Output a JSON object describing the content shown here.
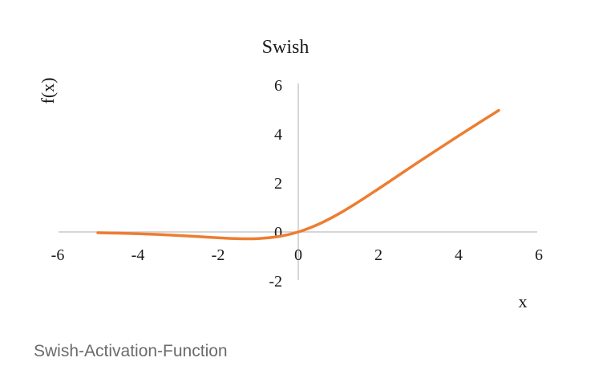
{
  "chart_data": {
    "type": "line",
    "title": "Swish",
    "xlabel": "x",
    "ylabel": "f(x)",
    "xlim": [
      -6,
      6
    ],
    "ylim": [
      -2,
      6
    ],
    "x_ticks": [
      "-6",
      "-4",
      "-2",
      "0",
      "2",
      "4",
      "6"
    ],
    "y_ticks": [
      "-2",
      "0",
      "2",
      "4",
      "6"
    ],
    "grid": false,
    "legend": "none",
    "series": [
      {
        "color": "#ed7d31",
        "x": [
          -5,
          -4.5,
          -4,
          -3.5,
          -3,
          -2.5,
          -2,
          -1.5,
          -1,
          -0.5,
          0,
          0.5,
          1,
          1.5,
          2,
          2.5,
          3,
          3.5,
          4,
          4.5,
          5
        ],
        "y": [
          -0.033,
          -0.05,
          -0.072,
          -0.103,
          -0.142,
          -0.189,
          -0.238,
          -0.274,
          -0.269,
          -0.189,
          0,
          0.311,
          0.731,
          1.227,
          1.762,
          2.311,
          2.858,
          3.395,
          3.928,
          4.45,
          4.966
        ]
      }
    ]
  },
  "caption": "Swish-Activation-Function"
}
